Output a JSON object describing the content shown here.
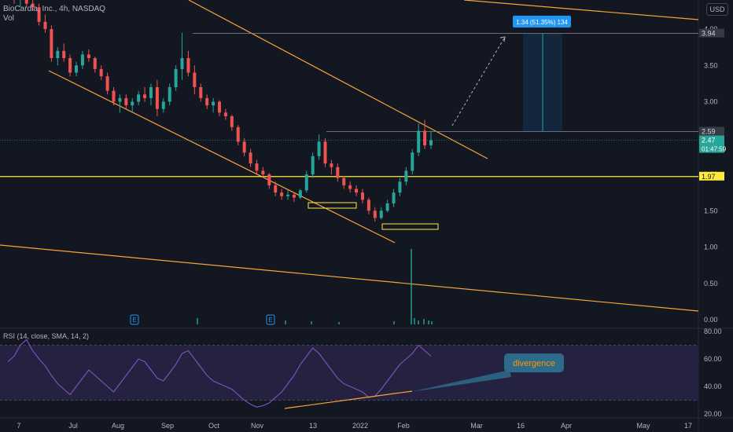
{
  "header": {
    "title": "BioCardia, Inc., 4h, NASDAQ",
    "vol_label": "Vol",
    "currency": "USD"
  },
  "rsi": {
    "label": "RSI (14, close, SMA, 14, 2)",
    "ticks": [
      80,
      60,
      40,
      20
    ],
    "band": [
      30,
      70
    ]
  },
  "colors": {
    "background": "#131722",
    "up": "#26a69a",
    "down": "#ef5350",
    "trend": "#f7a534",
    "level": "#ffeb3b",
    "rsi_line": "#7e57c2",
    "rsi_band": "#2a2448",
    "target_label": "#2196f3",
    "divergence": "#2e6b8a",
    "divergence_text": "#ff9800"
  },
  "chart_data": {
    "type": "candlestick",
    "price_ticks": [
      4.0,
      3.5,
      3.0,
      2.5,
      2.0,
      1.5,
      1.0,
      0.5,
      0.0
    ],
    "price_ticks_text": [
      "4.00",
      "3.50",
      "3.00",
      "2.50",
      "2.00",
      "1.50",
      "1.00",
      "0.50",
      "0.00"
    ],
    "x_ticks": [
      "7",
      "Jul",
      "Aug",
      "Sep",
      "Oct",
      "Nov",
      "13",
      "2022",
      "Feb",
      "Mar",
      "16",
      "Apr",
      "May",
      "17"
    ],
    "price_labels": [
      {
        "text": "3.94",
        "value": 3.94,
        "style": "grey"
      },
      {
        "text": "2.59",
        "value": 2.59,
        "style": "grey"
      },
      {
        "text": "2.47",
        "value": 2.47,
        "style": "teal",
        "sub": "01:47:59"
      },
      {
        "text": "1.97",
        "value": 1.97,
        "style": "yellow"
      }
    ],
    "horizontal_level": 1.97,
    "target_label": "1.34 (51.35%) 134",
    "annotation": "divergence",
    "earnings_marker": "E",
    "candles": [
      [
        4.55,
        4.7,
        4.45,
        4.6
      ],
      [
        4.6,
        4.62,
        4.35,
        4.4
      ],
      [
        4.4,
        4.55,
        4.3,
        4.5
      ],
      [
        4.5,
        4.5,
        4.3,
        4.35
      ],
      [
        4.35,
        4.45,
        4.25,
        4.3
      ],
      [
        4.3,
        4.35,
        4.05,
        4.1
      ],
      [
        4.1,
        4.2,
        3.95,
        4.0
      ],
      [
        4.0,
        4.05,
        3.55,
        3.6
      ],
      [
        3.6,
        3.75,
        3.5,
        3.7
      ],
      [
        3.7,
        3.8,
        3.55,
        3.6
      ],
      [
        3.6,
        3.65,
        3.35,
        3.4
      ],
      [
        3.4,
        3.55,
        3.35,
        3.5
      ],
      [
        3.5,
        3.7,
        3.45,
        3.65
      ],
      [
        3.65,
        3.72,
        3.55,
        3.6
      ],
      [
        3.6,
        3.62,
        3.4,
        3.45
      ],
      [
        3.45,
        3.5,
        3.3,
        3.35
      ],
      [
        3.35,
        3.4,
        3.1,
        3.15
      ],
      [
        3.15,
        3.2,
        2.95,
        3.0
      ],
      [
        3.0,
        3.1,
        2.85,
        3.05
      ],
      [
        3.05,
        3.1,
        2.9,
        2.95
      ],
      [
        2.95,
        3.05,
        2.85,
        3.0
      ],
      [
        3.0,
        3.15,
        2.95,
        3.1
      ],
      [
        3.1,
        3.2,
        3.0,
        3.05
      ],
      [
        3.05,
        3.25,
        2.95,
        3.2
      ],
      [
        3.2,
        3.3,
        2.8,
        2.9
      ],
      [
        2.9,
        3.05,
        2.85,
        3.0
      ],
      [
        3.0,
        3.25,
        2.95,
        3.2
      ],
      [
        3.2,
        3.5,
        3.15,
        3.45
      ],
      [
        3.45,
        3.95,
        3.3,
        3.6
      ],
      [
        3.6,
        3.7,
        3.35,
        3.4
      ],
      [
        3.4,
        3.5,
        3.1,
        3.2
      ],
      [
        3.2,
        3.25,
        3.0,
        3.05
      ],
      [
        3.05,
        3.1,
        2.9,
        2.95
      ],
      [
        2.95,
        3.05,
        2.85,
        3.0
      ],
      [
        3.0,
        3.02,
        2.8,
        2.85
      ],
      [
        2.85,
        2.9,
        2.75,
        2.8
      ],
      [
        2.8,
        2.82,
        2.6,
        2.65
      ],
      [
        2.65,
        2.68,
        2.4,
        2.45
      ],
      [
        2.45,
        2.5,
        2.25,
        2.3
      ],
      [
        2.3,
        2.35,
        2.1,
        2.15
      ],
      [
        2.15,
        2.2,
        2.0,
        2.05
      ],
      [
        2.05,
        2.1,
        1.95,
        2.0
      ],
      [
        2.0,
        2.02,
        1.8,
        1.85
      ],
      [
        1.85,
        1.9,
        1.7,
        1.75
      ],
      [
        1.75,
        1.8,
        1.65,
        1.7
      ],
      [
        1.7,
        1.78,
        1.65,
        1.72
      ],
      [
        1.72,
        1.75,
        1.62,
        1.68
      ],
      [
        1.68,
        1.8,
        1.66,
        1.78
      ],
      [
        1.78,
        2.05,
        1.75,
        2.0
      ],
      [
        2.0,
        2.3,
        1.95,
        2.25
      ],
      [
        2.25,
        2.55,
        2.2,
        2.45
      ],
      [
        2.45,
        2.5,
        2.1,
        2.15
      ],
      [
        2.15,
        2.2,
        2.0,
        2.1
      ],
      [
        2.1,
        2.15,
        1.9,
        1.95
      ],
      [
        1.95,
        1.98,
        1.8,
        1.85
      ],
      [
        1.85,
        1.9,
        1.75,
        1.8
      ],
      [
        1.8,
        1.85,
        1.7,
        1.75
      ],
      [
        1.75,
        1.8,
        1.6,
        1.65
      ],
      [
        1.65,
        1.68,
        1.45,
        1.5
      ],
      [
        1.5,
        1.55,
        1.35,
        1.4
      ],
      [
        1.4,
        1.55,
        1.38,
        1.5
      ],
      [
        1.5,
        1.65,
        1.48,
        1.6
      ],
      [
        1.6,
        1.8,
        1.55,
        1.75
      ],
      [
        1.75,
        1.95,
        1.7,
        1.9
      ],
      [
        1.9,
        2.1,
        1.85,
        2.05
      ],
      [
        2.05,
        2.35,
        2.0,
        2.3
      ],
      [
        2.3,
        2.7,
        2.25,
        2.6
      ],
      [
        2.6,
        2.75,
        2.35,
        2.4
      ],
      [
        2.4,
        2.6,
        2.35,
        2.47
      ]
    ],
    "rsi_values": [
      58,
      62,
      70,
      74,
      66,
      60,
      55,
      48,
      42,
      38,
      34,
      40,
      46,
      52,
      48,
      44,
      40,
      36,
      42,
      48,
      54,
      60,
      58,
      52,
      46,
      44,
      50,
      56,
      64,
      66,
      60,
      54,
      48,
      44,
      42,
      40,
      38,
      34,
      30,
      27,
      25,
      26,
      28,
      32,
      36,
      42,
      48,
      56,
      62,
      68,
      64,
      58,
      52,
      46,
      42,
      40,
      38,
      36,
      32,
      33,
      38,
      44,
      50,
      56,
      60,
      64,
      70,
      66,
      62
    ]
  }
}
